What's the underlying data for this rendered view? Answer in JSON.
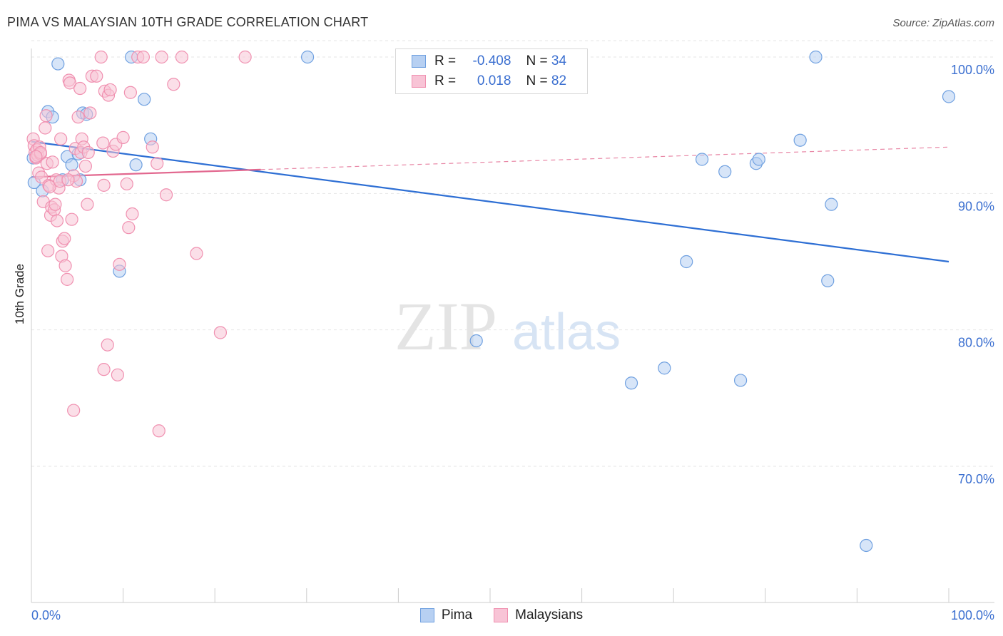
{
  "chart_data": {
    "type": "scatter",
    "title": "PIMA VS MALAYSIAN 10TH GRADE CORRELATION CHART",
    "source": "Source: ZipAtlas.com",
    "ylabel": "10th Grade",
    "xlim": [
      0,
      100
    ],
    "ylim": [
      60,
      101.5
    ],
    "x_tick_labels": [
      "0.0%",
      "100.0%"
    ],
    "y_ticks": [
      70,
      80,
      90,
      100
    ],
    "y_tick_labels": [
      "70.0%",
      "80.0%",
      "90.0%",
      "100.0%"
    ],
    "watermark": "ZIPatlas",
    "legend": {
      "rows": [
        {
          "r_label": "R =",
          "r_value": "-0.408",
          "n_label": "N =",
          "n_value": "34"
        },
        {
          "r_label": "R =",
          "r_value": "0.018",
          "n_label": "N =",
          "n_value": "82"
        }
      ]
    },
    "series": [
      {
        "name": "Pima",
        "color": "#6fa0e0",
        "fill": "#b7d0f2",
        "line_color": "#2e6fd4",
        "trend": {
          "x0": 0,
          "y0": 93.8,
          "x1": 100,
          "y1": 85.0,
          "dashed_from": null
        },
        "points": [
          [
            0.3,
            90.8
          ],
          [
            1.2,
            90.2
          ],
          [
            1.8,
            96.0
          ],
          [
            2.3,
            95.6
          ],
          [
            2.9,
            99.5
          ],
          [
            3.4,
            91.0
          ],
          [
            3.9,
            92.7
          ],
          [
            4.4,
            92.1
          ],
          [
            5.3,
            91.0
          ],
          [
            5.1,
            92.9
          ],
          [
            5.6,
            95.9
          ],
          [
            6.0,
            95.8
          ],
          [
            9.6,
            84.3
          ],
          [
            10.9,
            100.0
          ],
          [
            11.4,
            92.1
          ],
          [
            12.3,
            96.9
          ],
          [
            13.0,
            94.0
          ],
          [
            30.1,
            100.0
          ],
          [
            48.5,
            79.2
          ],
          [
            65.4,
            76.1
          ],
          [
            69.0,
            77.2
          ],
          [
            71.4,
            85.0
          ],
          [
            73.1,
            92.5
          ],
          [
            75.6,
            91.6
          ],
          [
            77.3,
            76.3
          ],
          [
            79.0,
            92.2
          ],
          [
            79.3,
            92.5
          ],
          [
            83.8,
            93.9
          ],
          [
            85.5,
            100.0
          ],
          [
            86.8,
            83.6
          ],
          [
            87.2,
            89.2
          ],
          [
            91.0,
            64.2
          ],
          [
            100.0,
            97.1
          ],
          [
            0.2,
            92.6
          ]
        ]
      },
      {
        "name": "Malaysians",
        "color": "#f090b0",
        "fill": "#f8c4d6",
        "line_color": "#e2688f",
        "trend": {
          "x0": 0,
          "y0": 91.2,
          "x1": 100,
          "y1": 93.4,
          "dashed_from": 25
        },
        "points": [
          [
            0.2,
            94.0
          ],
          [
            0.3,
            93.5
          ],
          [
            0.4,
            93.0
          ],
          [
            0.5,
            92.6
          ],
          [
            0.6,
            93.2
          ],
          [
            0.7,
            92.8
          ],
          [
            0.8,
            91.5
          ],
          [
            0.9,
            93.4
          ],
          [
            1.0,
            92.9
          ],
          [
            1.1,
            91.2
          ],
          [
            1.3,
            89.4
          ],
          [
            1.5,
            94.8
          ],
          [
            1.6,
            95.7
          ],
          [
            1.7,
            92.2
          ],
          [
            1.8,
            85.8
          ],
          [
            1.9,
            90.6
          ],
          [
            2.1,
            88.4
          ],
          [
            2.2,
            89.0
          ],
          [
            2.3,
            92.3
          ],
          [
            2.5,
            88.8
          ],
          [
            2.6,
            89.2
          ],
          [
            2.7,
            91.0
          ],
          [
            2.8,
            88.0
          ],
          [
            3.0,
            90.4
          ],
          [
            3.2,
            94.0
          ],
          [
            3.3,
            85.4
          ],
          [
            3.4,
            86.5
          ],
          [
            3.6,
            86.7
          ],
          [
            3.7,
            84.7
          ],
          [
            3.9,
            83.7
          ],
          [
            4.1,
            98.3
          ],
          [
            4.2,
            98.1
          ],
          [
            4.4,
            88.1
          ],
          [
            4.6,
            91.3
          ],
          [
            4.8,
            93.3
          ],
          [
            4.9,
            90.9
          ],
          [
            5.1,
            95.6
          ],
          [
            5.3,
            97.7
          ],
          [
            5.4,
            93.0
          ],
          [
            5.5,
            94.0
          ],
          [
            5.7,
            93.4
          ],
          [
            5.9,
            92.0
          ],
          [
            6.1,
            89.2
          ],
          [
            6.4,
            95.9
          ],
          [
            6.6,
            98.6
          ],
          [
            7.1,
            98.6
          ],
          [
            7.6,
            100.0
          ],
          [
            7.8,
            93.7
          ],
          [
            8.0,
            97.5
          ],
          [
            8.4,
            97.2
          ],
          [
            8.6,
            97.6
          ],
          [
            8.9,
            93.1
          ],
          [
            9.2,
            93.6
          ],
          [
            9.6,
            84.8
          ],
          [
            10.0,
            94.1
          ],
          [
            10.4,
            90.7
          ],
          [
            10.6,
            87.5
          ],
          [
            10.8,
            97.4
          ],
          [
            11.0,
            88.5
          ],
          [
            11.6,
            100.0
          ],
          [
            12.2,
            100.0
          ],
          [
            13.2,
            93.4
          ],
          [
            13.7,
            92.2
          ],
          [
            14.2,
            100.0
          ],
          [
            14.7,
            89.9
          ],
          [
            15.5,
            98.0
          ],
          [
            16.4,
            100.0
          ],
          [
            18.0,
            85.6
          ],
          [
            20.6,
            79.8
          ],
          [
            23.3,
            100.0
          ],
          [
            7.9,
            77.1
          ],
          [
            8.3,
            78.9
          ],
          [
            9.4,
            76.7
          ],
          [
            4.6,
            74.1
          ],
          [
            13.9,
            72.6
          ],
          [
            1.0,
            93.0
          ],
          [
            2.0,
            90.5
          ],
          [
            3.1,
            90.9
          ],
          [
            6.2,
            93.0
          ],
          [
            7.9,
            90.6
          ],
          [
            0.5,
            92.7
          ],
          [
            4.0,
            91.0
          ]
        ]
      }
    ]
  },
  "legend_bottom": [
    "Pima",
    "Malaysians"
  ]
}
